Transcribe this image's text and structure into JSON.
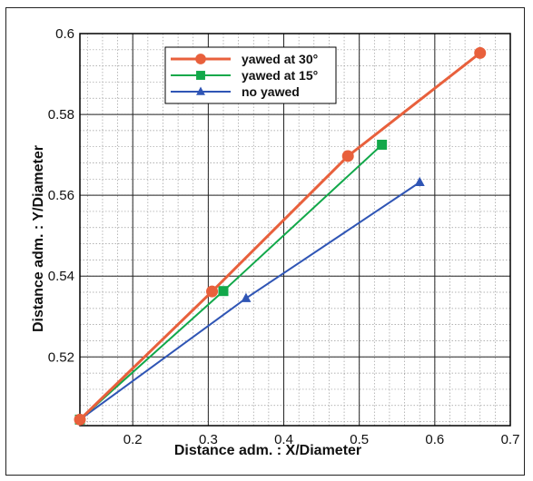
{
  "chart_data": {
    "type": "line",
    "xlabel": "Distance adm. :  X/Diameter",
    "ylabel": "Distance adm. :  Y/Diameter",
    "xlim": [
      0.13,
      0.7
    ],
    "ylim": [
      0.503,
      0.6
    ],
    "x_major_ticks": [
      0.2,
      0.3,
      0.4,
      0.5,
      0.6,
      0.7
    ],
    "x_tick_labels": [
      "0.2",
      "0.3",
      "0.4",
      "0.5",
      "0.6",
      "0.7"
    ],
    "y_major_ticks": [
      0.52,
      0.54,
      0.56,
      0.58,
      0.6
    ],
    "y_tick_labels": [
      "0.52",
      "0.54",
      "0.56",
      "0.58",
      "0.6"
    ],
    "grid": true,
    "legend_position": "top-center",
    "series": [
      {
        "name": "yawed at 30°",
        "color": "#e8603c",
        "marker": "circle",
        "x": [
          0.13,
          0.305,
          0.485,
          0.66
        ],
        "y": [
          0.5045,
          0.5362,
          0.5697,
          0.5952
        ]
      },
      {
        "name": "yawed at 15°",
        "color": "#12a84a",
        "marker": "square",
        "x": [
          0.13,
          0.32,
          0.53
        ],
        "y": [
          0.5045,
          0.5363,
          0.5725
        ]
      },
      {
        "name": "no yawed",
        "color": "#2f55b5",
        "marker": "triangle",
        "x": [
          0.13,
          0.35,
          0.58
        ],
        "y": [
          0.5045,
          0.5345,
          0.5632
        ]
      }
    ]
  }
}
